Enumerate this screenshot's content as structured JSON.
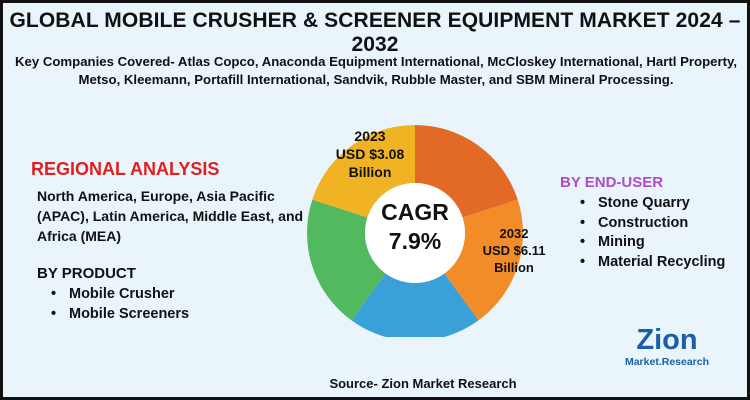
{
  "title": "GLOBAL MOBILE CRUSHER & SCREENER EQUIPMENT MARKET 2024 – 2032",
  "companies": "Key Companies Covered- Atlas Copco, Anaconda Equipment International, McCloskey International, Hartl Property, Metso, Kleemann, Portafill International, Sandvik, Rubble Master, and SBM Mineral Processing.",
  "regional": {
    "heading": "REGIONAL ANALYSIS",
    "text": "North America, Europe, Asia Pacific (APAC), Latin America, Middle East, and Africa (MEA)"
  },
  "product": {
    "heading": "BY PRODUCT",
    "items": [
      "Mobile Crusher",
      "Mobile Screeners"
    ]
  },
  "end_user": {
    "heading": "BY END-USER",
    "items": [
      "Stone Quarry",
      "Construction",
      "Mining",
      "Material Recycling"
    ]
  },
  "source": "Source- Zion Market Research",
  "logo": {
    "text_top": "Zion",
    "text_bottom": "Market.Research"
  },
  "colors": {
    "background": "#e9f5fb",
    "regional_heading": "#e02020",
    "end_user_heading": "#b04ac8",
    "logo_blue": "#1c5fa8",
    "logo_orange": "#f39220"
  },
  "chart_data": {
    "type": "pie",
    "donut": true,
    "center_label": "CAGR",
    "center_value": "7.9%",
    "slices": [
      {
        "value": 20,
        "color": "#e36a26"
      },
      {
        "value": 20,
        "color": "#f28c28"
      },
      {
        "value": 20,
        "color": "#3aa1d8"
      },
      {
        "value": 20,
        "color": "#52b95f"
      },
      {
        "value": 20,
        "color": "#f0b323"
      }
    ],
    "annotations": {
      "year_2023": "2023",
      "value_2023": "USD $3.08",
      "unit_2023": "Billion",
      "year_2032": "2032",
      "value_2032": "USD $6.11",
      "unit_2032": "Billion"
    }
  }
}
